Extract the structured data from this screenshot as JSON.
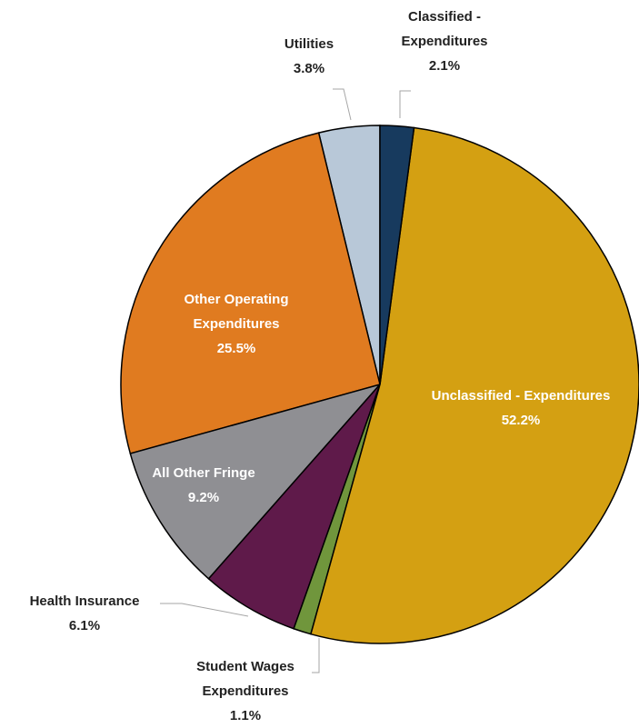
{
  "chart_data": {
    "type": "pie",
    "categories": [
      "Classified - Expenditures",
      "Unclassified - Expenditures",
      "Student Wages Expenditures",
      "Health Insurance",
      "All Other Fringe",
      "Other Operating Expenditures",
      "Utilities"
    ],
    "values": [
      2.1,
      52.2,
      1.1,
      6.1,
      9.2,
      25.5,
      3.8
    ],
    "value_labels": [
      "2.1%",
      "52.2%",
      "1.1%",
      "6.1%",
      "9.2%",
      "25.5%",
      "3.8%"
    ],
    "colors": [
      "#173a5e",
      "#d4a012",
      "#70963c",
      "#5f1a4a",
      "#8f8f93",
      "#e07b20",
      "#b8c8d8"
    ]
  }
}
